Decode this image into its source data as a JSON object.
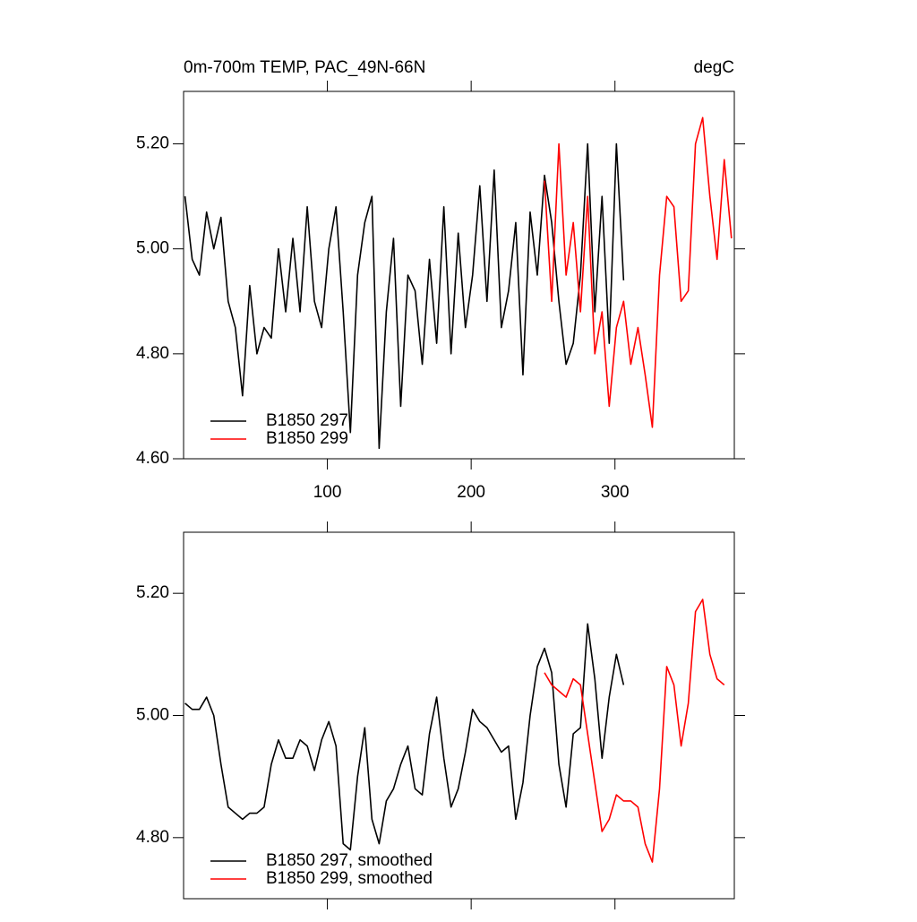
{
  "chart_data": [
    {
      "type": "line",
      "title": "0m-700m TEMP, PAC_49N-66N",
      "units": "degC",
      "x": [
        1,
        6,
        11,
        16,
        21,
        26,
        31,
        36,
        41,
        46,
        51,
        56,
        61,
        66,
        71,
        76,
        81,
        86,
        91,
        96,
        101,
        106,
        111,
        116,
        121,
        126,
        131,
        136,
        141,
        146,
        151,
        156,
        161,
        166,
        171,
        176,
        181,
        186,
        191,
        196,
        201,
        206,
        211,
        216,
        221,
        226,
        231,
        236,
        241,
        246,
        251,
        256,
        261,
        266,
        271,
        276,
        281,
        286,
        291,
        296,
        301,
        306,
        311,
        316,
        321,
        326,
        331,
        336,
        341,
        346,
        351,
        356,
        361,
        366,
        371,
        376,
        381
      ],
      "series": [
        {
          "name": "B1850 297",
          "color": "#000000",
          "values": [
            5.1,
            4.98,
            4.95,
            5.07,
            5.0,
            5.06,
            4.9,
            4.85,
            4.72,
            4.93,
            4.8,
            4.85,
            4.83,
            5.0,
            4.88,
            5.02,
            4.88,
            5.08,
            4.9,
            4.85,
            5.0,
            5.08,
            4.88,
            4.65,
            4.95,
            5.05,
            5.1,
            4.62,
            4.88,
            5.02,
            4.7,
            4.95,
            4.92,
            4.78,
            4.98,
            4.82,
            5.08,
            4.8,
            5.03,
            4.85,
            4.95,
            5.12,
            4.9,
            5.15,
            4.85,
            4.92,
            5.05,
            4.76,
            5.07,
            4.95,
            5.14,
            5.05,
            4.9,
            4.78,
            4.82,
            4.95,
            5.2,
            4.88,
            5.1,
            4.82,
            5.2,
            4.94,
            null,
            null,
            null,
            null,
            null,
            null,
            null,
            null,
            null,
            null,
            null,
            null,
            null,
            null,
            null
          ]
        },
        {
          "name": "B1850 299",
          "color": "#ff0000",
          "values": [
            null,
            null,
            null,
            null,
            null,
            null,
            null,
            null,
            null,
            null,
            null,
            null,
            null,
            null,
            null,
            null,
            null,
            null,
            null,
            null,
            null,
            null,
            null,
            null,
            null,
            null,
            null,
            null,
            null,
            null,
            null,
            null,
            null,
            null,
            null,
            null,
            null,
            null,
            null,
            null,
            null,
            null,
            null,
            null,
            null,
            null,
            null,
            null,
            null,
            null,
            5.13,
            4.9,
            5.2,
            4.95,
            5.05,
            4.88,
            5.1,
            4.8,
            4.88,
            4.7,
            4.85,
            4.9,
            4.78,
            4.85,
            4.76,
            4.66,
            4.95,
            5.1,
            5.08,
            4.9,
            4.92,
            5.2,
            5.25,
            5.1,
            4.98,
            5.17,
            5.02
          ]
        }
      ],
      "xlim": [
        0,
        383
      ],
      "xticks": [
        100,
        200,
        300
      ],
      "show_xtick_labels": true,
      "ylim": [
        4.6,
        5.3
      ],
      "yticks": [
        {
          "value": 4.6,
          "label": "4.60"
        },
        {
          "value": 4.8,
          "label": "4.80"
        },
        {
          "value": 5.0,
          "label": "5.00"
        },
        {
          "value": 5.2,
          "label": "5.20"
        }
      ],
      "legend": "lower left"
    },
    {
      "type": "line",
      "x": [
        1,
        6,
        11,
        16,
        21,
        26,
        31,
        36,
        41,
        46,
        51,
        56,
        61,
        66,
        71,
        76,
        81,
        86,
        91,
        96,
        101,
        106,
        111,
        116,
        121,
        126,
        131,
        136,
        141,
        146,
        151,
        156,
        161,
        166,
        171,
        176,
        181,
        186,
        191,
        196,
        201,
        206,
        211,
        216,
        221,
        226,
        231,
        236,
        241,
        246,
        251,
        256,
        261,
        266,
        271,
        276,
        281,
        286,
        291,
        296,
        301,
        306,
        311,
        316,
        321,
        326,
        331,
        336,
        341,
        346,
        351,
        356,
        361,
        366,
        371,
        376,
        381
      ],
      "series": [
        {
          "name": "B1850 297, smoothed",
          "color": "#000000",
          "values": [
            5.02,
            5.01,
            5.01,
            5.03,
            5.0,
            4.92,
            4.85,
            4.84,
            4.83,
            4.84,
            4.84,
            4.85,
            4.92,
            4.96,
            4.93,
            4.93,
            4.96,
            4.95,
            4.91,
            4.96,
            4.99,
            4.95,
            4.79,
            4.78,
            4.9,
            4.98,
            4.83,
            4.79,
            4.86,
            4.88,
            4.92,
            4.95,
            4.88,
            4.87,
            4.97,
            5.03,
            4.93,
            4.85,
            4.88,
            4.94,
            5.01,
            4.99,
            4.98,
            4.96,
            4.94,
            4.95,
            4.83,
            4.89,
            5.0,
            5.08,
            5.11,
            5.07,
            4.92,
            4.85,
            4.97,
            4.98,
            5.15,
            5.06,
            4.93,
            5.03,
            5.1,
            5.05,
            null,
            null,
            null,
            null,
            null,
            null,
            null,
            null,
            null,
            null,
            null,
            null,
            null,
            null,
            null
          ]
        },
        {
          "name": "B1850 299, smoothed",
          "color": "#ff0000",
          "values": [
            null,
            null,
            null,
            null,
            null,
            null,
            null,
            null,
            null,
            null,
            null,
            null,
            null,
            null,
            null,
            null,
            null,
            null,
            null,
            null,
            null,
            null,
            null,
            null,
            null,
            null,
            null,
            null,
            null,
            null,
            null,
            null,
            null,
            null,
            null,
            null,
            null,
            null,
            null,
            null,
            null,
            null,
            null,
            null,
            null,
            null,
            null,
            null,
            null,
            null,
            5.07,
            5.05,
            5.04,
            5.03,
            5.06,
            5.05,
            4.97,
            4.89,
            4.81,
            4.83,
            4.87,
            4.86,
            4.86,
            4.85,
            4.79,
            4.76,
            4.88,
            5.08,
            5.05,
            4.95,
            5.02,
            5.17,
            5.19,
            5.1,
            5.06,
            5.05,
            null
          ]
        }
      ],
      "xlim": [
        0,
        383
      ],
      "xticks": [
        100,
        200,
        300
      ],
      "show_xtick_labels": false,
      "ylim": [
        4.7,
        5.3
      ],
      "yticks": [
        {
          "value": 4.8,
          "label": "4.80"
        },
        {
          "value": 5.0,
          "label": "5.00"
        },
        {
          "value": 5.2,
          "label": "5.20"
        }
      ],
      "legend": "lower left"
    }
  ]
}
